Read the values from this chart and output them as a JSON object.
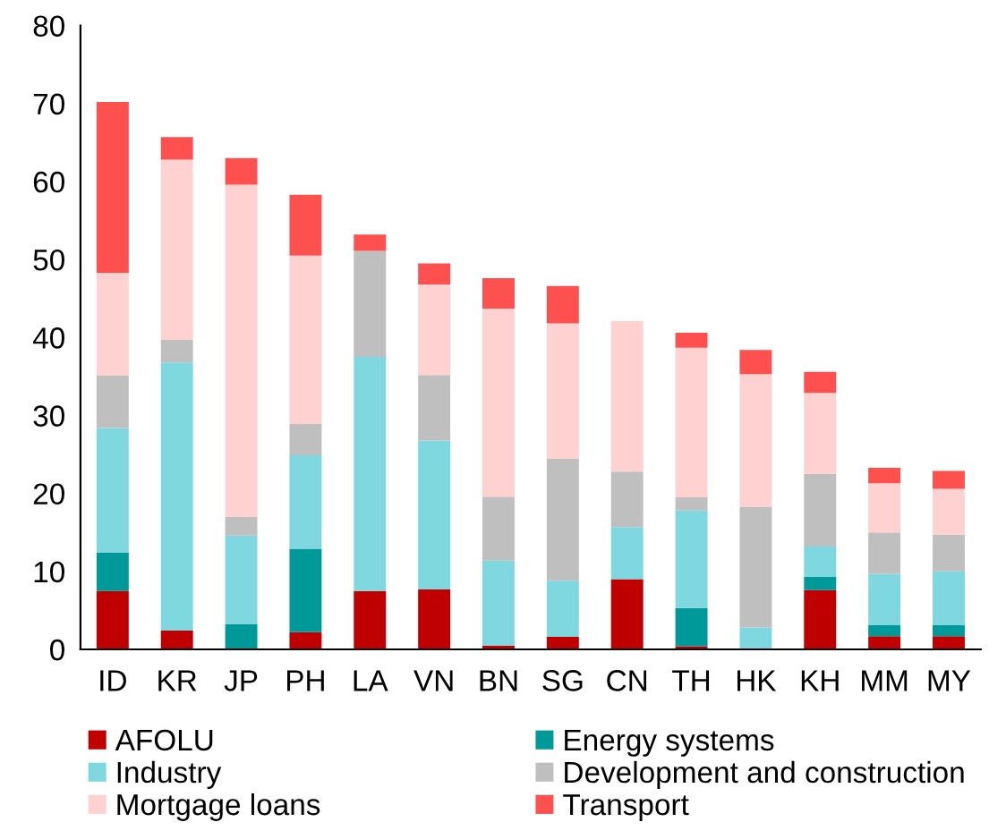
{
  "chart_data": {
    "type": "bar",
    "stacked": true,
    "categories": [
      "ID",
      "KR",
      "JP",
      "PH",
      "LA",
      "VN",
      "BN",
      "SG",
      "CN",
      "TH",
      "HK",
      "KH",
      "MM",
      "MY"
    ],
    "series": [
      {
        "name": "AFOLU",
        "color": "#c00000",
        "values": [
          7.5,
          2.4,
          0,
          2.2,
          7.5,
          7.7,
          0.5,
          1.6,
          9.0,
          0.4,
          0,
          7.6,
          1.7,
          1.7
        ]
      },
      {
        "name": "Energy systems",
        "color": "#009999",
        "values": [
          4.9,
          0,
          3.2,
          10.7,
          0,
          0,
          0,
          0,
          0,
          4.9,
          0,
          1.7,
          1.4,
          1.4
        ]
      },
      {
        "name": "Industry",
        "color": "#7fd8e0",
        "values": [
          16.0,
          34.4,
          11.4,
          12.0,
          30.0,
          19.1,
          10.9,
          7.2,
          6.7,
          12.5,
          2.8,
          3.9,
          6.6,
          6.9
        ]
      },
      {
        "name": "Development and construction",
        "color": "#bfbfbf",
        "values": [
          6.7,
          2.9,
          2.4,
          4.0,
          13.6,
          8.4,
          8.2,
          15.7,
          7.1,
          1.7,
          15.5,
          9.3,
          5.3,
          4.7
        ]
      },
      {
        "name": "Mortgage loans",
        "color": "#ffd1d1",
        "values": [
          13.2,
          23.1,
          42.6,
          21.6,
          0,
          11.6,
          24.1,
          17.3,
          19.3,
          19.2,
          17.0,
          10.4,
          6.3,
          5.9
        ]
      },
      {
        "name": "Transport",
        "color": "#ff5050",
        "values": [
          21.9,
          2.9,
          3.4,
          7.8,
          2.1,
          2.7,
          3.9,
          4.8,
          0,
          1.9,
          3.1,
          2.7,
          2.0,
          2.3
        ]
      }
    ],
    "ylim": [
      0,
      80
    ],
    "yticks": [
      0,
      10,
      20,
      30,
      40,
      50,
      60,
      70,
      80
    ],
    "grid": false,
    "legend": "bottom"
  }
}
